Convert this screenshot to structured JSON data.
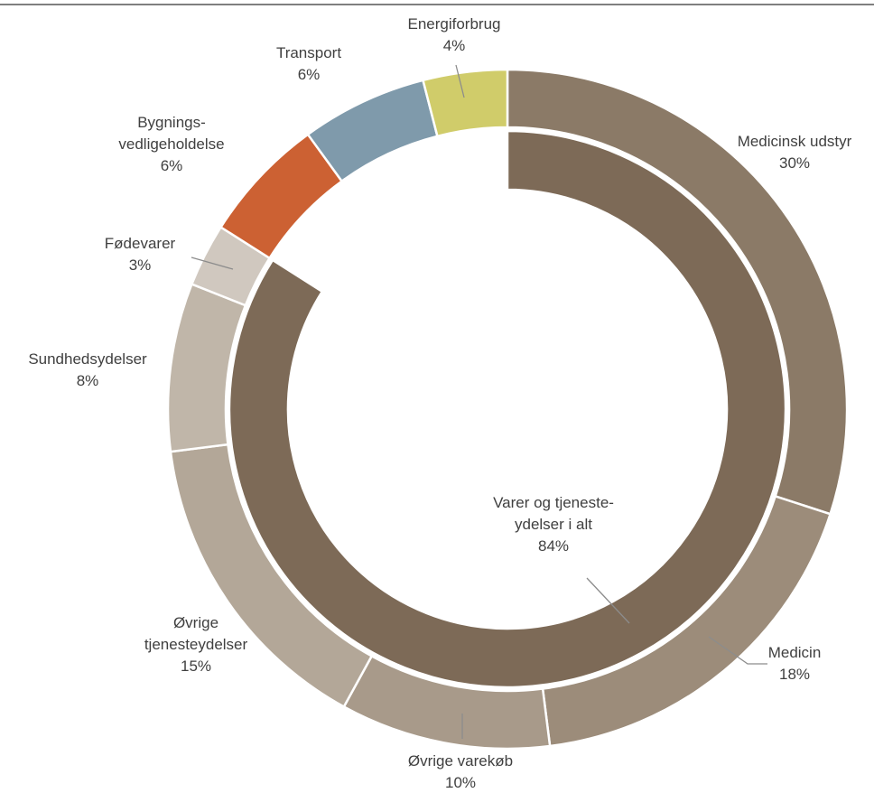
{
  "chart_data": {
    "type": "donut",
    "title": "",
    "outer_ring": [
      {
        "label_lines": [
          "Medicinsk udstyr",
          "30%"
        ],
        "value": 30,
        "color": "#8b7a67"
      },
      {
        "label_lines": [
          "Medicin",
          "18%"
        ],
        "value": 18,
        "color": "#9c8c7a"
      },
      {
        "label_lines": [
          "Øvrige varekøb",
          "10%"
        ],
        "value": 10,
        "color": "#a89a8a"
      },
      {
        "label_lines": [
          "Øvrige",
          "tjenesteydelser",
          "15%"
        ],
        "value": 15,
        "color": "#b3a798"
      },
      {
        "label_lines": [
          "Sundhedsydelser",
          "8%"
        ],
        "value": 8,
        "color": "#c0b6a9"
      },
      {
        "label_lines": [
          "Fødevarer",
          "3%"
        ],
        "value": 3,
        "color": "#d0c8bf"
      },
      {
        "label_lines": [
          "Bygnings-",
          "vedligeholdelse",
          "6%"
        ],
        "value": 6,
        "color": "#cc6133"
      },
      {
        "label_lines": [
          "Transport",
          "6%"
        ],
        "value": 6,
        "color": "#7f9aab"
      },
      {
        "label_lines": [
          "Energiforbrug",
          "4%"
        ],
        "value": 4,
        "color": "#d0cc6a"
      }
    ],
    "inner_ring": [
      {
        "label_lines": [
          "Varer og tjeneste-",
          "ydelser i alt",
          "84%"
        ],
        "value": 84,
        "color": "#7d6a57"
      }
    ]
  }
}
